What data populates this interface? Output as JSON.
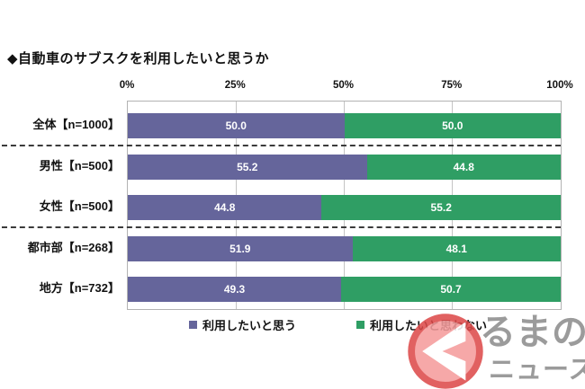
{
  "title": "◆自動車のサブスクを利用したいと思うか",
  "chart_data": {
    "type": "bar",
    "orientation": "horizontal",
    "stacked": true,
    "title": "◆自動車のサブスクを利用したいと思うか",
    "x_ticks": [
      "0%",
      "25%",
      "50%",
      "75%",
      "100%"
    ],
    "xlim": [
      0,
      100
    ],
    "grid": true,
    "legend_position": "bottom",
    "categories": [
      "全体【n=1000】",
      "男性【n=500】",
      "女性【n=500】",
      "都市部【n=268】",
      "地方【n=732】"
    ],
    "series": [
      {
        "name": "利用したいと思う",
        "color": "#65659B",
        "values": [
          50.0,
          55.2,
          44.8,
          51.9,
          49.3
        ]
      },
      {
        "name": "利用したいと思わない",
        "color": "#2F9E64",
        "values": [
          50.0,
          44.8,
          55.2,
          48.1,
          50.7
        ]
      }
    ],
    "group_separators_after": [
      0,
      2
    ]
  },
  "watermark": {
    "icon": "ku-circle-icon",
    "line1": "るまの",
    "line2": "ニュース",
    "circle_fill": "#F59C9C",
    "circle_ring": "#DD4A4A",
    "text_color": "#9B9B9B"
  }
}
